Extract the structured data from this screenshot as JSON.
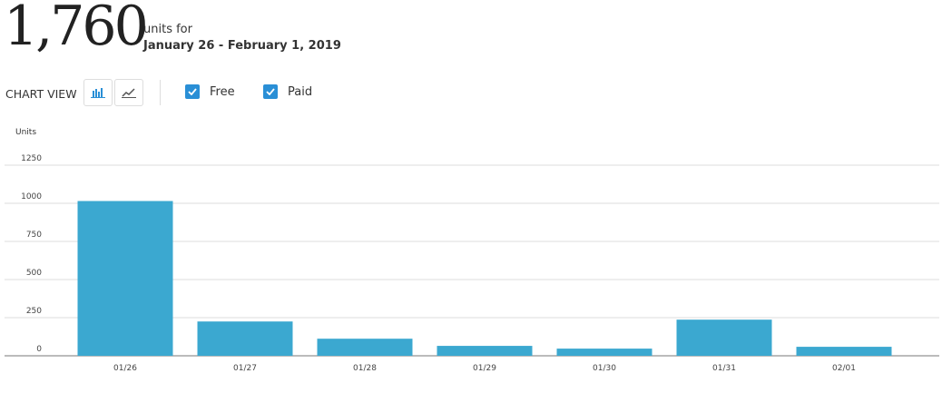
{
  "header": {
    "total": "1,760",
    "units_for": "units for",
    "date_range": "January 26 - February 1, 2019"
  },
  "controls": {
    "chart_view_label": "CHART VIEW",
    "view_buttons": [
      {
        "icon": "bar-chart-icon",
        "active": true
      },
      {
        "icon": "line-chart-icon",
        "active": false
      }
    ],
    "filters": [
      {
        "label": "Free",
        "checked": true
      },
      {
        "label": "Paid",
        "checked": true
      }
    ],
    "accent_color": "#2a8fd6"
  },
  "chart_data": {
    "type": "bar",
    "ylabel": "Units",
    "xlabel": "",
    "ylim": [
      0,
      1250
    ],
    "yticks": [
      0,
      250,
      500,
      750,
      1000,
      1250
    ],
    "grid": true,
    "categories": [
      "01/26",
      "01/27",
      "01/28",
      "01/29",
      "01/30",
      "01/31",
      "02/01"
    ],
    "values": [
      1015,
      225,
      112,
      65,
      47,
      237,
      59
    ],
    "bar_color": "#3ba8d0"
  }
}
